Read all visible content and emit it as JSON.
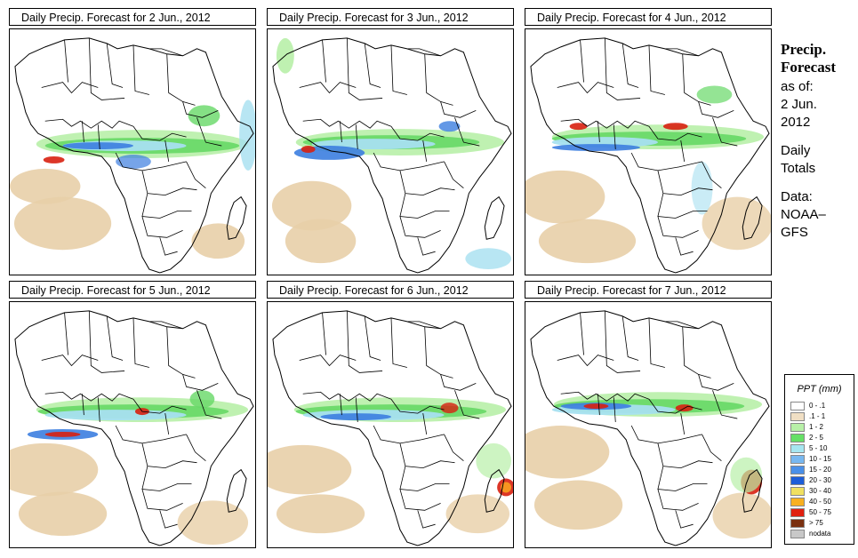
{
  "panels": [
    {
      "title": "Daily Precip. Forecast for  2 Jun., 2012"
    },
    {
      "title": "Daily Precip. Forecast for  3 Jun., 2012"
    },
    {
      "title": "Daily Precip. Forecast for  4 Jun., 2012"
    },
    {
      "title": "Daily Precip. Forecast for  5 Jun., 2012"
    },
    {
      "title": "Daily Precip. Forecast for  6 Jun., 2012"
    },
    {
      "title": "Daily Precip. Forecast for  7 Jun., 2012"
    }
  ],
  "side": {
    "heading1": "Precip.",
    "heading2": "Forecast",
    "asof1": "as of:",
    "asof2": "2 Jun.",
    "asof3": "2012",
    "totals1": "Daily",
    "totals2": "Totals",
    "data1": "Data:",
    "data2": "NOAA–",
    "data3": "GFS"
  },
  "legend": {
    "title": "PPT (mm)",
    "items": [
      {
        "label": "0 - .1",
        "color": "#ffffff"
      },
      {
        "label": ".1 - 1",
        "color": "#f0dfc4"
      },
      {
        "label": "1 - 2",
        "color": "#b8f0a8"
      },
      {
        "label": "2 - 5",
        "color": "#66e066"
      },
      {
        "label": "5 - 10",
        "color": "#a6e6f0"
      },
      {
        "label": "10 - 15",
        "color": "#78b8f0"
      },
      {
        "label": "15 - 20",
        "color": "#4a90e8"
      },
      {
        "label": "20 - 30",
        "color": "#1e5ed8"
      },
      {
        "label": "30 - 40",
        "color": "#f0e060"
      },
      {
        "label": "40 - 50",
        "color": "#f8b020"
      },
      {
        "label": "50 - 75",
        "color": "#e02010"
      },
      {
        "label": "> 75",
        "color": "#7a3010"
      },
      {
        "label": "nodata",
        "color": "#c8c8c8"
      }
    ]
  },
  "colors": {
    "sand": "#e8cfa8",
    "green": "#66d866",
    "lightgreen": "#b8f0a8",
    "lightblue": "#a6e0f0",
    "blue": "#3c7ee0",
    "darkblue": "#1e4ec8",
    "red": "#d82010",
    "orange": "#f8a020",
    "border": "#000000"
  }
}
